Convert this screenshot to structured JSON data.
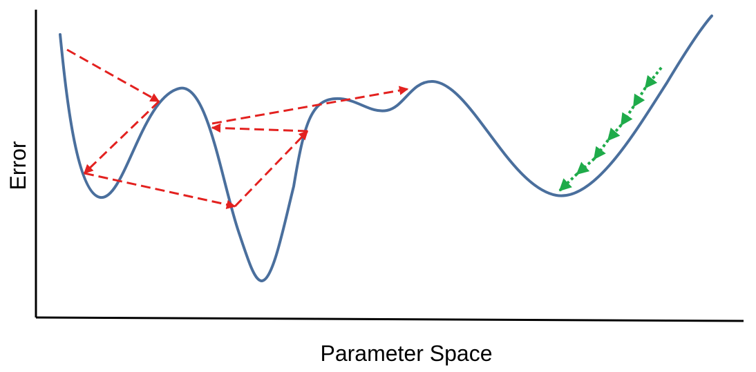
{
  "labels": {
    "x_axis": "Parameter Space",
    "y_axis": "Error"
  },
  "colors": {
    "axis": "#000000",
    "curve": "#4a6f9d",
    "large_step_arrows": "#e3211f",
    "small_step_arrows": "#1fab4a"
  },
  "legend": {
    "large_step_arrows": "red dashed arrows: large jumps bouncing between local minima",
    "small_step_arrows": "green dotted arrows: small steps descending into a minimum"
  }
}
